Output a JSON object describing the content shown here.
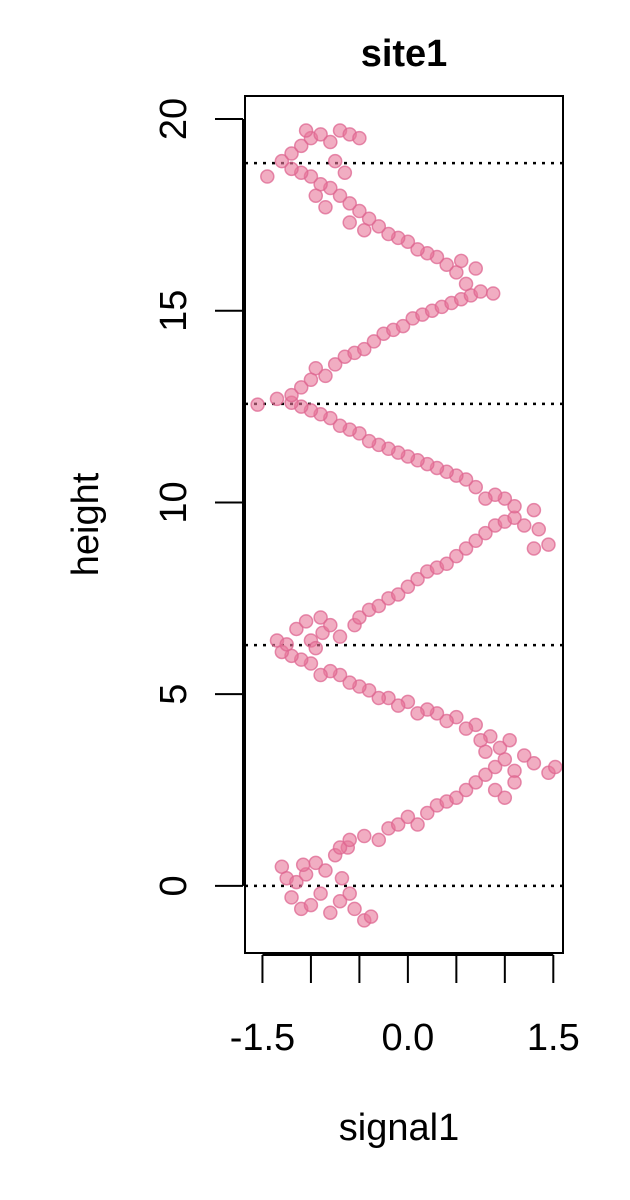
{
  "chart_data": {
    "type": "scatter",
    "title": "site1",
    "xlabel": "signal1",
    "ylabel": "height",
    "xlim": [
      -1.68,
      1.6
    ],
    "ylim": [
      -1.75,
      20.6
    ],
    "x_ticks": [
      -1.5,
      -1.0,
      -0.5,
      0.0,
      0.5,
      1.0,
      1.5
    ],
    "x_tick_labels": [
      "-1.5",
      "0.0",
      "1.5"
    ],
    "x_tick_label_values": [
      -1.5,
      0.0,
      1.5
    ],
    "y_ticks": [
      0,
      5,
      10,
      15,
      20
    ],
    "y_tick_labels": [
      "0",
      "5",
      "10",
      "15",
      "20"
    ],
    "reference_lines_y": [
      0,
      6.28,
      12.57,
      18.85
    ],
    "grid": false,
    "legend": "none",
    "point_color": "#E7769A",
    "point_stroke": "#DD6690",
    "series": [
      {
        "points": [
          [
            -1.3,
            0.5
          ],
          [
            -1.25,
            0.2
          ],
          [
            -1.2,
            -0.3
          ],
          [
            -1.15,
            0.1
          ],
          [
            -1.1,
            -0.6
          ],
          [
            -1.05,
            0.3
          ],
          [
            -1.0,
            -0.5
          ],
          [
            -0.95,
            0.6
          ],
          [
            -0.9,
            -0.2
          ],
          [
            -0.85,
            0.4
          ],
          [
            -0.8,
            -0.7
          ],
          [
            -0.75,
            0.8
          ],
          [
            -0.7,
            -0.4
          ],
          [
            -0.68,
            0.2
          ],
          [
            -0.62,
            1.0
          ],
          [
            -0.55,
            -0.6
          ],
          [
            -0.45,
            -0.9
          ],
          [
            -0.38,
            -0.8
          ],
          [
            -0.6,
            -0.2
          ],
          [
            -1.08,
            0.55
          ],
          [
            -0.7,
            1.0
          ],
          [
            -0.6,
            1.2
          ],
          [
            -0.45,
            1.3
          ],
          [
            -0.3,
            1.2
          ],
          [
            -0.2,
            1.5
          ],
          [
            -0.1,
            1.6
          ],
          [
            0.0,
            1.8
          ],
          [
            0.1,
            1.6
          ],
          [
            0.2,
            1.9
          ],
          [
            0.3,
            2.1
          ],
          [
            0.4,
            2.2
          ],
          [
            0.5,
            2.3
          ],
          [
            0.6,
            2.5
          ],
          [
            0.7,
            2.7
          ],
          [
            0.8,
            2.9
          ],
          [
            0.9,
            3.1
          ],
          [
            1.0,
            3.3
          ],
          [
            1.1,
            3.0
          ],
          [
            1.2,
            3.4
          ],
          [
            1.3,
            3.2
          ],
          [
            1.45,
            2.95
          ],
          [
            1.52,
            3.1
          ],
          [
            0.95,
            3.6
          ],
          [
            0.85,
            3.9
          ],
          [
            1.05,
            3.8
          ],
          [
            0.9,
            2.5
          ],
          [
            1.0,
            2.3
          ],
          [
            1.1,
            2.7
          ],
          [
            0.8,
            3.5
          ],
          [
            0.75,
            3.8
          ],
          [
            0.7,
            4.2
          ],
          [
            0.6,
            4.1
          ],
          [
            0.5,
            4.4
          ],
          [
            0.4,
            4.3
          ],
          [
            0.3,
            4.5
          ],
          [
            0.2,
            4.6
          ],
          [
            0.1,
            4.5
          ],
          [
            0.0,
            4.8
          ],
          [
            -0.1,
            4.7
          ],
          [
            -0.2,
            4.9
          ],
          [
            -0.3,
            4.9
          ],
          [
            -0.4,
            5.1
          ],
          [
            -0.5,
            5.2
          ],
          [
            -0.6,
            5.3
          ],
          [
            -0.7,
            5.5
          ],
          [
            -0.8,
            5.6
          ],
          [
            -0.9,
            5.5
          ],
          [
            -1.0,
            5.8
          ],
          [
            -1.1,
            5.9
          ],
          [
            -1.2,
            6.0
          ],
          [
            -1.3,
            6.1
          ],
          [
            -1.35,
            6.4
          ],
          [
            -1.25,
            6.3
          ],
          [
            -1.15,
            6.7
          ],
          [
            -1.0,
            6.4
          ],
          [
            -0.95,
            6.2
          ],
          [
            -0.88,
            6.6
          ],
          [
            -1.05,
            6.9
          ],
          [
            -0.9,
            7.0
          ],
          [
            -0.8,
            6.8
          ],
          [
            -0.7,
            6.5
          ],
          [
            -0.55,
            6.8
          ],
          [
            -0.5,
            7.0
          ],
          [
            -0.4,
            7.2
          ],
          [
            -0.3,
            7.3
          ],
          [
            -0.2,
            7.5
          ],
          [
            -0.1,
            7.6
          ],
          [
            0.0,
            7.8
          ],
          [
            0.1,
            8.0
          ],
          [
            0.2,
            8.2
          ],
          [
            0.3,
            8.3
          ],
          [
            0.4,
            8.4
          ],
          [
            0.5,
            8.6
          ],
          [
            0.6,
            8.8
          ],
          [
            0.7,
            9.0
          ],
          [
            0.8,
            9.2
          ],
          [
            0.9,
            9.4
          ],
          [
            1.0,
            9.5
          ],
          [
            1.1,
            9.6
          ],
          [
            1.2,
            9.4
          ],
          [
            1.3,
            9.8
          ],
          [
            1.35,
            9.3
          ],
          [
            1.45,
            8.9
          ],
          [
            1.3,
            8.8
          ],
          [
            1.1,
            9.9
          ],
          [
            1.0,
            10.1
          ],
          [
            0.9,
            10.2
          ],
          [
            0.8,
            10.1
          ],
          [
            0.7,
            10.4
          ],
          [
            0.6,
            10.6
          ],
          [
            0.5,
            10.7
          ],
          [
            0.4,
            10.8
          ],
          [
            0.3,
            10.9
          ],
          [
            0.2,
            11.0
          ],
          [
            0.1,
            11.1
          ],
          [
            0.0,
            11.2
          ],
          [
            -0.1,
            11.3
          ],
          [
            -0.2,
            11.4
          ],
          [
            -0.3,
            11.5
          ],
          [
            -0.4,
            11.6
          ],
          [
            -0.5,
            11.8
          ],
          [
            -0.6,
            11.9
          ],
          [
            -0.7,
            12.0
          ],
          [
            -0.8,
            12.2
          ],
          [
            -0.9,
            12.3
          ],
          [
            -1.0,
            12.4
          ],
          [
            -1.1,
            12.5
          ],
          [
            -1.2,
            12.6
          ],
          [
            -1.35,
            12.7
          ],
          [
            -1.55,
            12.55
          ],
          [
            -1.2,
            12.8
          ],
          [
            -1.1,
            13.0
          ],
          [
            -1.0,
            13.2
          ],
          [
            -0.95,
            13.5
          ],
          [
            -0.85,
            13.3
          ],
          [
            -0.75,
            13.6
          ],
          [
            -0.65,
            13.8
          ],
          [
            -0.55,
            13.9
          ],
          [
            -0.45,
            14.0
          ],
          [
            -0.35,
            14.2
          ],
          [
            -0.25,
            14.4
          ],
          [
            -0.15,
            14.5
          ],
          [
            -0.05,
            14.6
          ],
          [
            0.05,
            14.8
          ],
          [
            0.15,
            14.9
          ],
          [
            0.25,
            15.0
          ],
          [
            0.35,
            15.1
          ],
          [
            0.45,
            15.2
          ],
          [
            0.55,
            15.3
          ],
          [
            0.65,
            15.4
          ],
          [
            0.75,
            15.5
          ],
          [
            0.88,
            15.45
          ],
          [
            0.6,
            15.7
          ],
          [
            0.5,
            16.0
          ],
          [
            0.4,
            16.2
          ],
          [
            0.3,
            16.4
          ],
          [
            0.2,
            16.5
          ],
          [
            0.1,
            16.6
          ],
          [
            0.0,
            16.8
          ],
          [
            -0.1,
            16.9
          ],
          [
            -0.2,
            17.0
          ],
          [
            -0.3,
            17.2
          ],
          [
            -0.4,
            17.4
          ],
          [
            -0.5,
            17.6
          ],
          [
            -0.6,
            17.8
          ],
          [
            -0.7,
            18.0
          ],
          [
            -0.8,
            18.2
          ],
          [
            -0.9,
            18.3
          ],
          [
            -1.0,
            18.5
          ],
          [
            -1.1,
            18.6
          ],
          [
            -1.2,
            18.7
          ],
          [
            -1.3,
            18.9
          ],
          [
            -1.2,
            19.1
          ],
          [
            -1.1,
            19.3
          ],
          [
            -1.0,
            19.5
          ],
          [
            -0.9,
            19.6
          ],
          [
            -0.8,
            19.4
          ],
          [
            -0.7,
            19.7
          ],
          [
            -0.6,
            19.6
          ],
          [
            -0.5,
            19.5
          ],
          [
            -1.45,
            18.5
          ],
          [
            -1.05,
            19.7
          ],
          [
            -0.75,
            18.9
          ],
          [
            -0.65,
            18.6
          ],
          [
            -0.95,
            18.0
          ],
          [
            -0.85,
            17.7
          ],
          [
            -0.6,
            17.3
          ],
          [
            -0.45,
            17.1
          ],
          [
            0.55,
            16.3
          ],
          [
            0.7,
            16.1
          ]
        ]
      }
    ]
  }
}
